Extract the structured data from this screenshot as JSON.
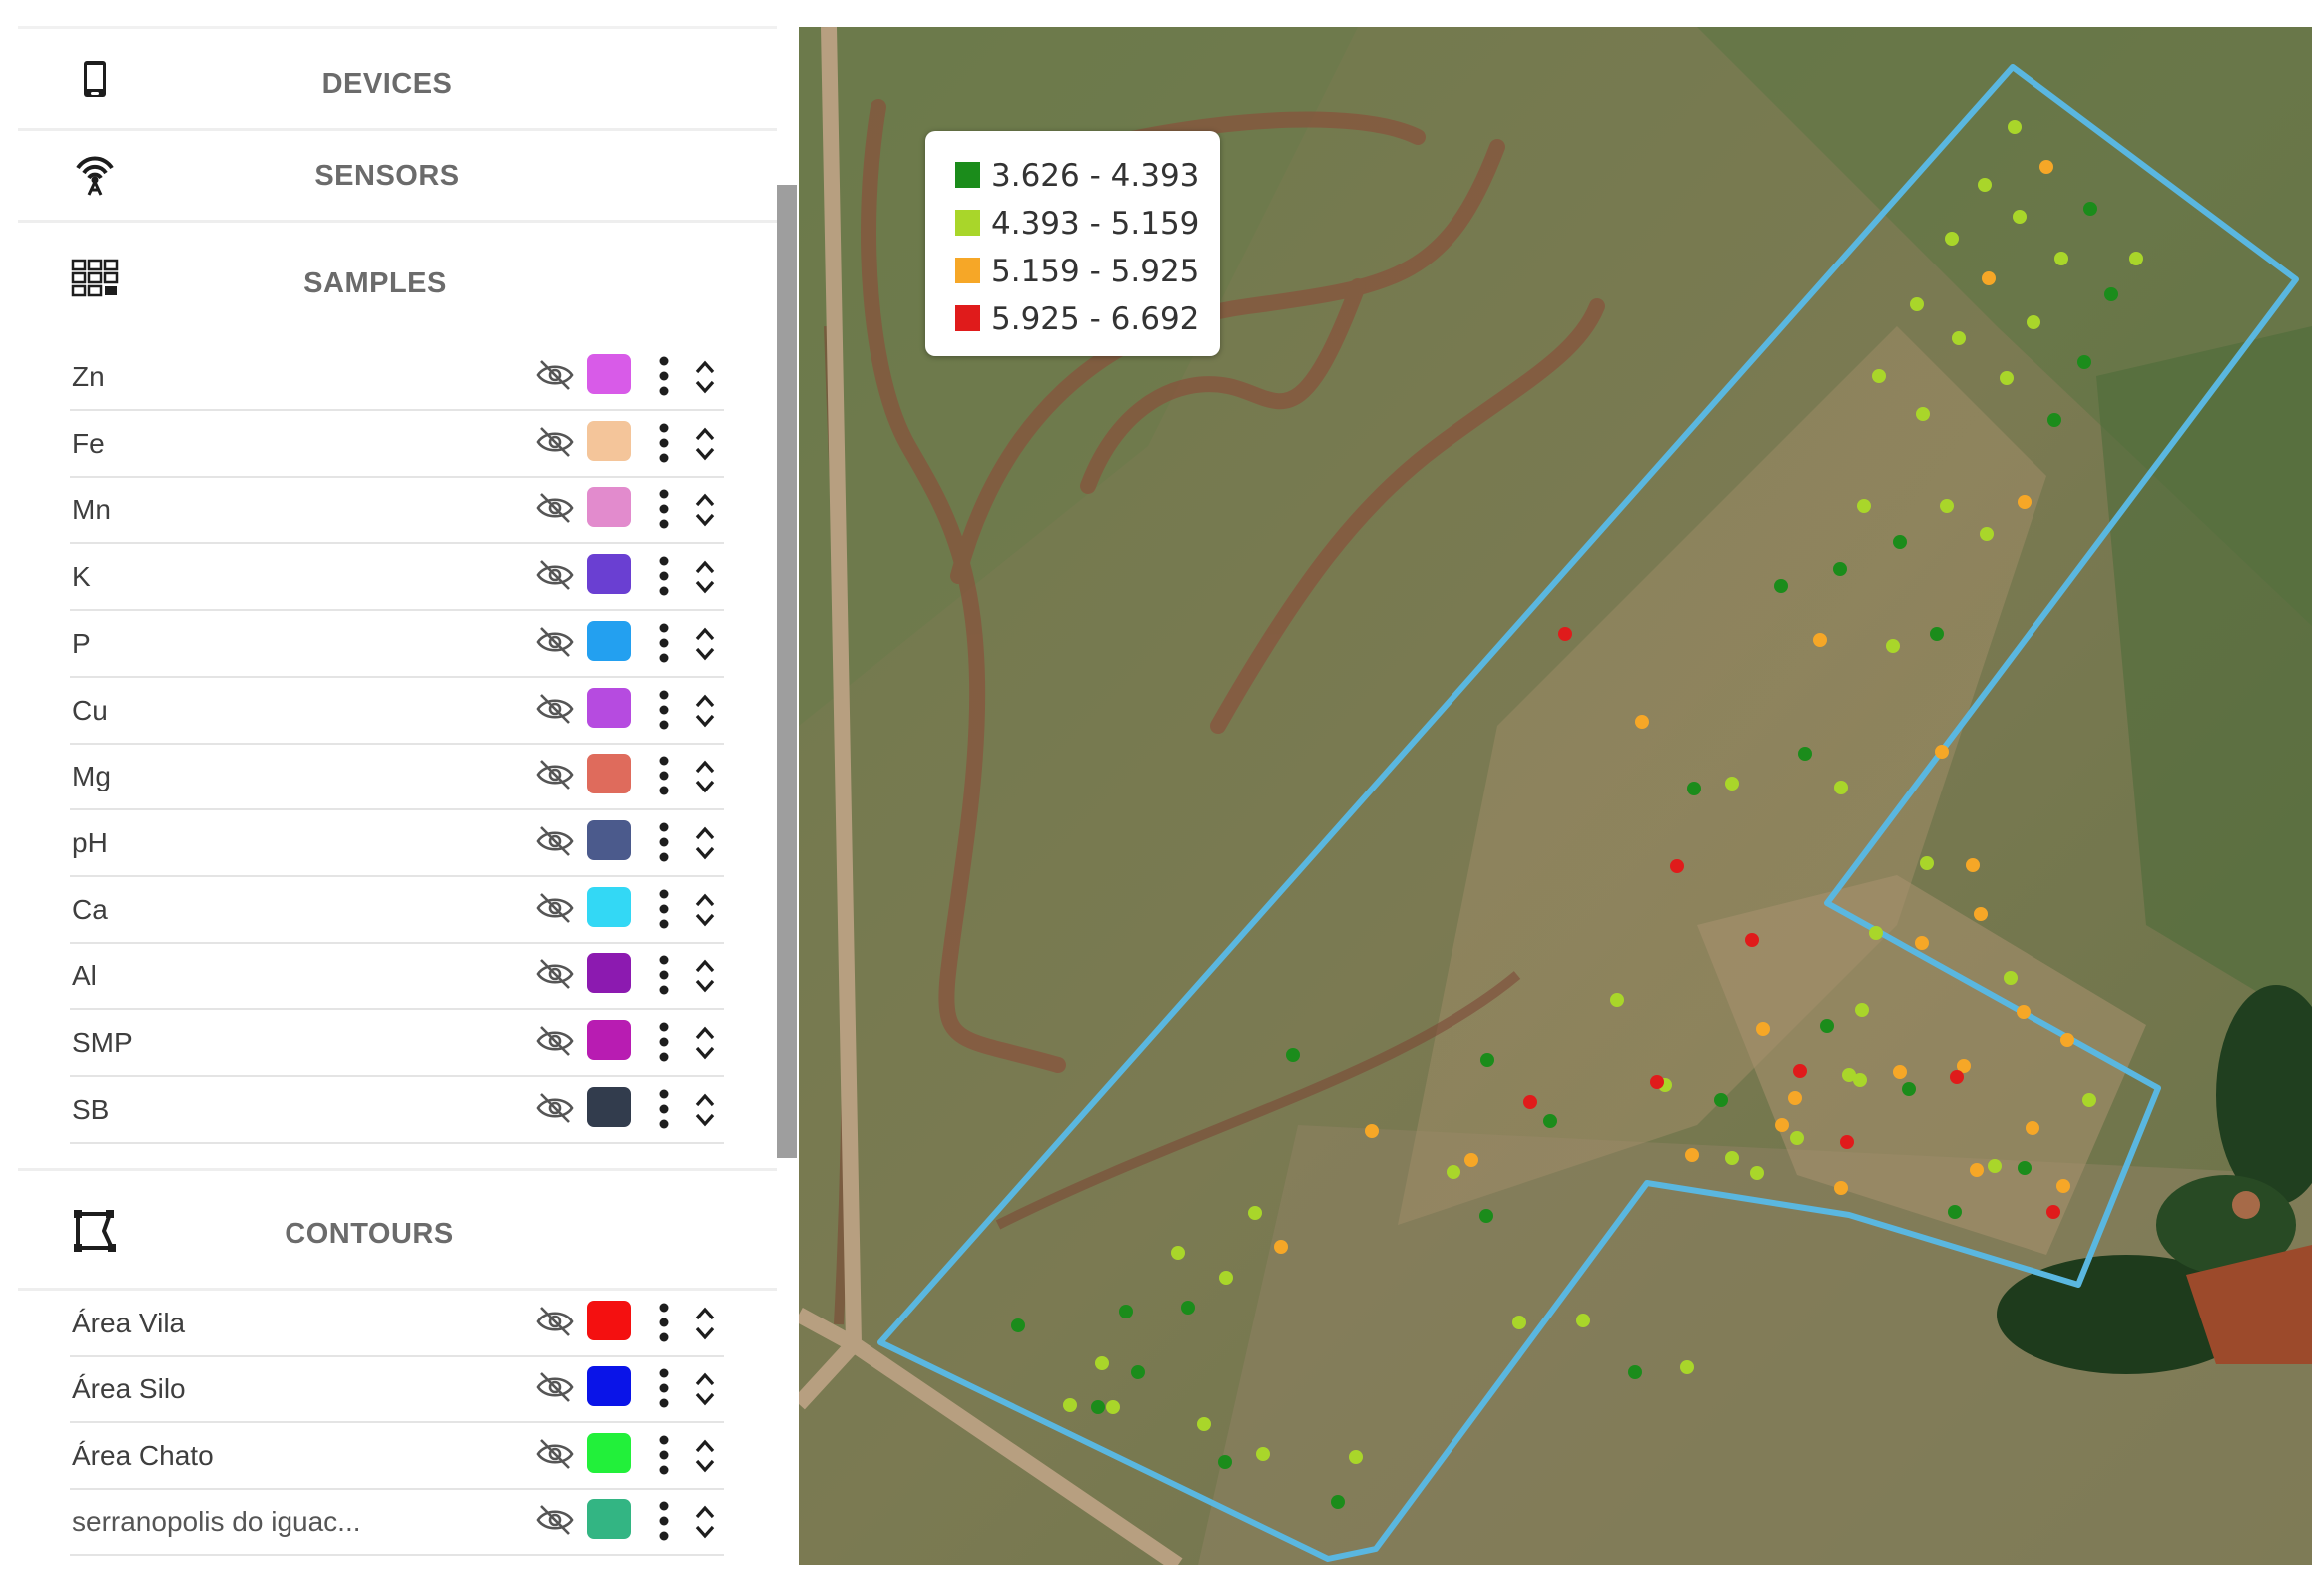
{
  "sections": {
    "devices": "DEVICES",
    "sensors": "SENSORS",
    "samples": "SAMPLES",
    "contours": "CONTOURS"
  },
  "samples": [
    {
      "label": "Zn",
      "color": "#d85be8"
    },
    {
      "label": "Fe",
      "color": "#f4c59a"
    },
    {
      "label": "Mn",
      "color": "#e28bcd"
    },
    {
      "label": "K",
      "color": "#6a3fd2"
    },
    {
      "label": "P",
      "color": "#23a0f0"
    },
    {
      "label": "Cu",
      "color": "#b64be0"
    },
    {
      "label": "Mg",
      "color": "#df6b5c"
    },
    {
      "label": "pH",
      "color": "#4b5a8c"
    },
    {
      "label": "Ca",
      "color": "#33d8f5"
    },
    {
      "label": "Al",
      "color": "#8c1ab0"
    },
    {
      "label": "SMP",
      "color": "#b81cb2"
    },
    {
      "label": "SB",
      "color": "#323c4d"
    }
  ],
  "contours": [
    {
      "label": "Área Vila",
      "color": "#f41010"
    },
    {
      "label": "Área Silo",
      "color": "#0a14e8"
    },
    {
      "label": "Área Chato",
      "color": "#22f03a"
    },
    {
      "label": "serranopolis do iguac...",
      "color": "#33b583"
    }
  ],
  "legend": [
    {
      "range": "3.626 - 4.393",
      "color": "#1b8c1b"
    },
    {
      "range": "4.393 - 5.159",
      "color": "#a9d62a"
    },
    {
      "range": "5.159 - 5.925",
      "color": "#f6a727"
    },
    {
      "range": "5.925 - 6.692",
      "color": "#e01b1b"
    }
  ],
  "colors": {
    "boundary": "#5ab7e0",
    "section_title": "#6b6b6b"
  }
}
